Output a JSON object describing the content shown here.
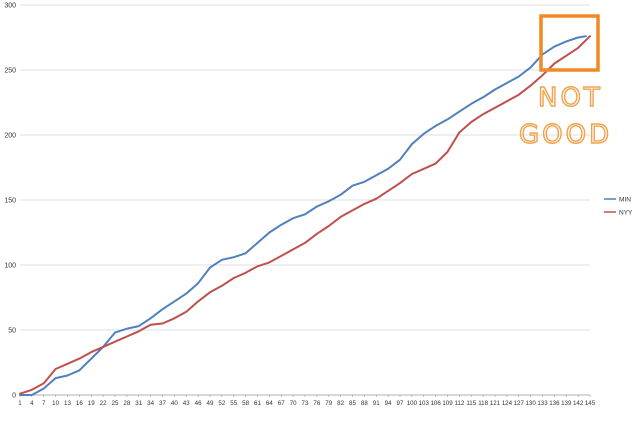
{
  "chart_data": {
    "type": "line",
    "title": "",
    "xlabel": "",
    "ylabel": "",
    "ylim": [
      0,
      300
    ],
    "yticks": [
      0,
      50,
      100,
      150,
      200,
      250,
      300
    ],
    "x_tick_labels": [
      "1",
      "4",
      "7",
      "10",
      "13",
      "16",
      "19",
      "22",
      "25",
      "28",
      "31",
      "34",
      "37",
      "40",
      "43",
      "46",
      "49",
      "52",
      "55",
      "58",
      "61",
      "64",
      "67",
      "70",
      "73",
      "76",
      "79",
      "82",
      "85",
      "88",
      "91",
      "94",
      "97",
      "100",
      "103",
      "106",
      "109",
      "112",
      "115",
      "118",
      "121",
      "124",
      "127",
      "130",
      "133",
      "136",
      "139",
      "142",
      "145"
    ],
    "grid": "horizontal",
    "legend_position": "right",
    "series": [
      {
        "name": "MIN",
        "color": "#4f81bd",
        "points": [
          [
            1,
            0
          ],
          [
            4,
            0
          ],
          [
            7,
            5
          ],
          [
            10,
            13
          ],
          [
            13,
            15
          ],
          [
            16,
            19
          ],
          [
            19,
            28
          ],
          [
            22,
            37
          ],
          [
            25,
            48
          ],
          [
            28,
            51
          ],
          [
            31,
            53
          ],
          [
            34,
            59
          ],
          [
            37,
            66
          ],
          [
            40,
            72
          ],
          [
            43,
            78
          ],
          [
            46,
            86
          ],
          [
            49,
            98
          ],
          [
            52,
            104
          ],
          [
            55,
            106
          ],
          [
            58,
            109
          ],
          [
            61,
            117
          ],
          [
            64,
            125
          ],
          [
            67,
            131
          ],
          [
            70,
            136
          ],
          [
            73,
            139
          ],
          [
            76,
            145
          ],
          [
            79,
            149
          ],
          [
            82,
            154
          ],
          [
            85,
            161
          ],
          [
            88,
            164
          ],
          [
            91,
            169
          ],
          [
            94,
            174
          ],
          [
            97,
            181
          ],
          [
            100,
            193
          ],
          [
            103,
            201
          ],
          [
            106,
            207
          ],
          [
            109,
            212
          ],
          [
            112,
            218
          ],
          [
            115,
            224
          ],
          [
            118,
            229
          ],
          [
            121,
            235
          ],
          [
            124,
            240
          ],
          [
            127,
            245
          ],
          [
            130,
            252
          ],
          [
            133,
            262
          ],
          [
            136,
            268
          ],
          [
            139,
            272
          ],
          [
            142,
            275
          ],
          [
            144,
            276
          ]
        ]
      },
      {
        "name": "NYY",
        "color": "#c0504d",
        "points": [
          [
            1,
            1
          ],
          [
            4,
            4
          ],
          [
            7,
            9
          ],
          [
            10,
            20
          ],
          [
            13,
            24
          ],
          [
            16,
            28
          ],
          [
            19,
            33
          ],
          [
            22,
            37
          ],
          [
            25,
            41
          ],
          [
            28,
            45
          ],
          [
            31,
            49
          ],
          [
            34,
            54
          ],
          [
            37,
            55
          ],
          [
            40,
            59
          ],
          [
            43,
            64
          ],
          [
            46,
            72
          ],
          [
            49,
            79
          ],
          [
            52,
            84
          ],
          [
            55,
            90
          ],
          [
            58,
            94
          ],
          [
            61,
            99
          ],
          [
            64,
            102
          ],
          [
            67,
            107
          ],
          [
            70,
            112
          ],
          [
            73,
            117
          ],
          [
            76,
            124
          ],
          [
            79,
            130
          ],
          [
            82,
            137
          ],
          [
            85,
            142
          ],
          [
            88,
            147
          ],
          [
            91,
            151
          ],
          [
            94,
            157
          ],
          [
            97,
            163
          ],
          [
            100,
            170
          ],
          [
            103,
            174
          ],
          [
            106,
            178
          ],
          [
            109,
            187
          ],
          [
            112,
            202
          ],
          [
            115,
            210
          ],
          [
            118,
            216
          ],
          [
            121,
            221
          ],
          [
            124,
            226
          ],
          [
            127,
            231
          ],
          [
            130,
            238
          ],
          [
            133,
            246
          ],
          [
            136,
            255
          ],
          [
            139,
            261
          ],
          [
            142,
            267
          ],
          [
            145,
            276
          ]
        ]
      }
    ],
    "annotation": {
      "text_line1": "NOT",
      "text_line2": "GOOD",
      "color": "#f08a24"
    }
  }
}
